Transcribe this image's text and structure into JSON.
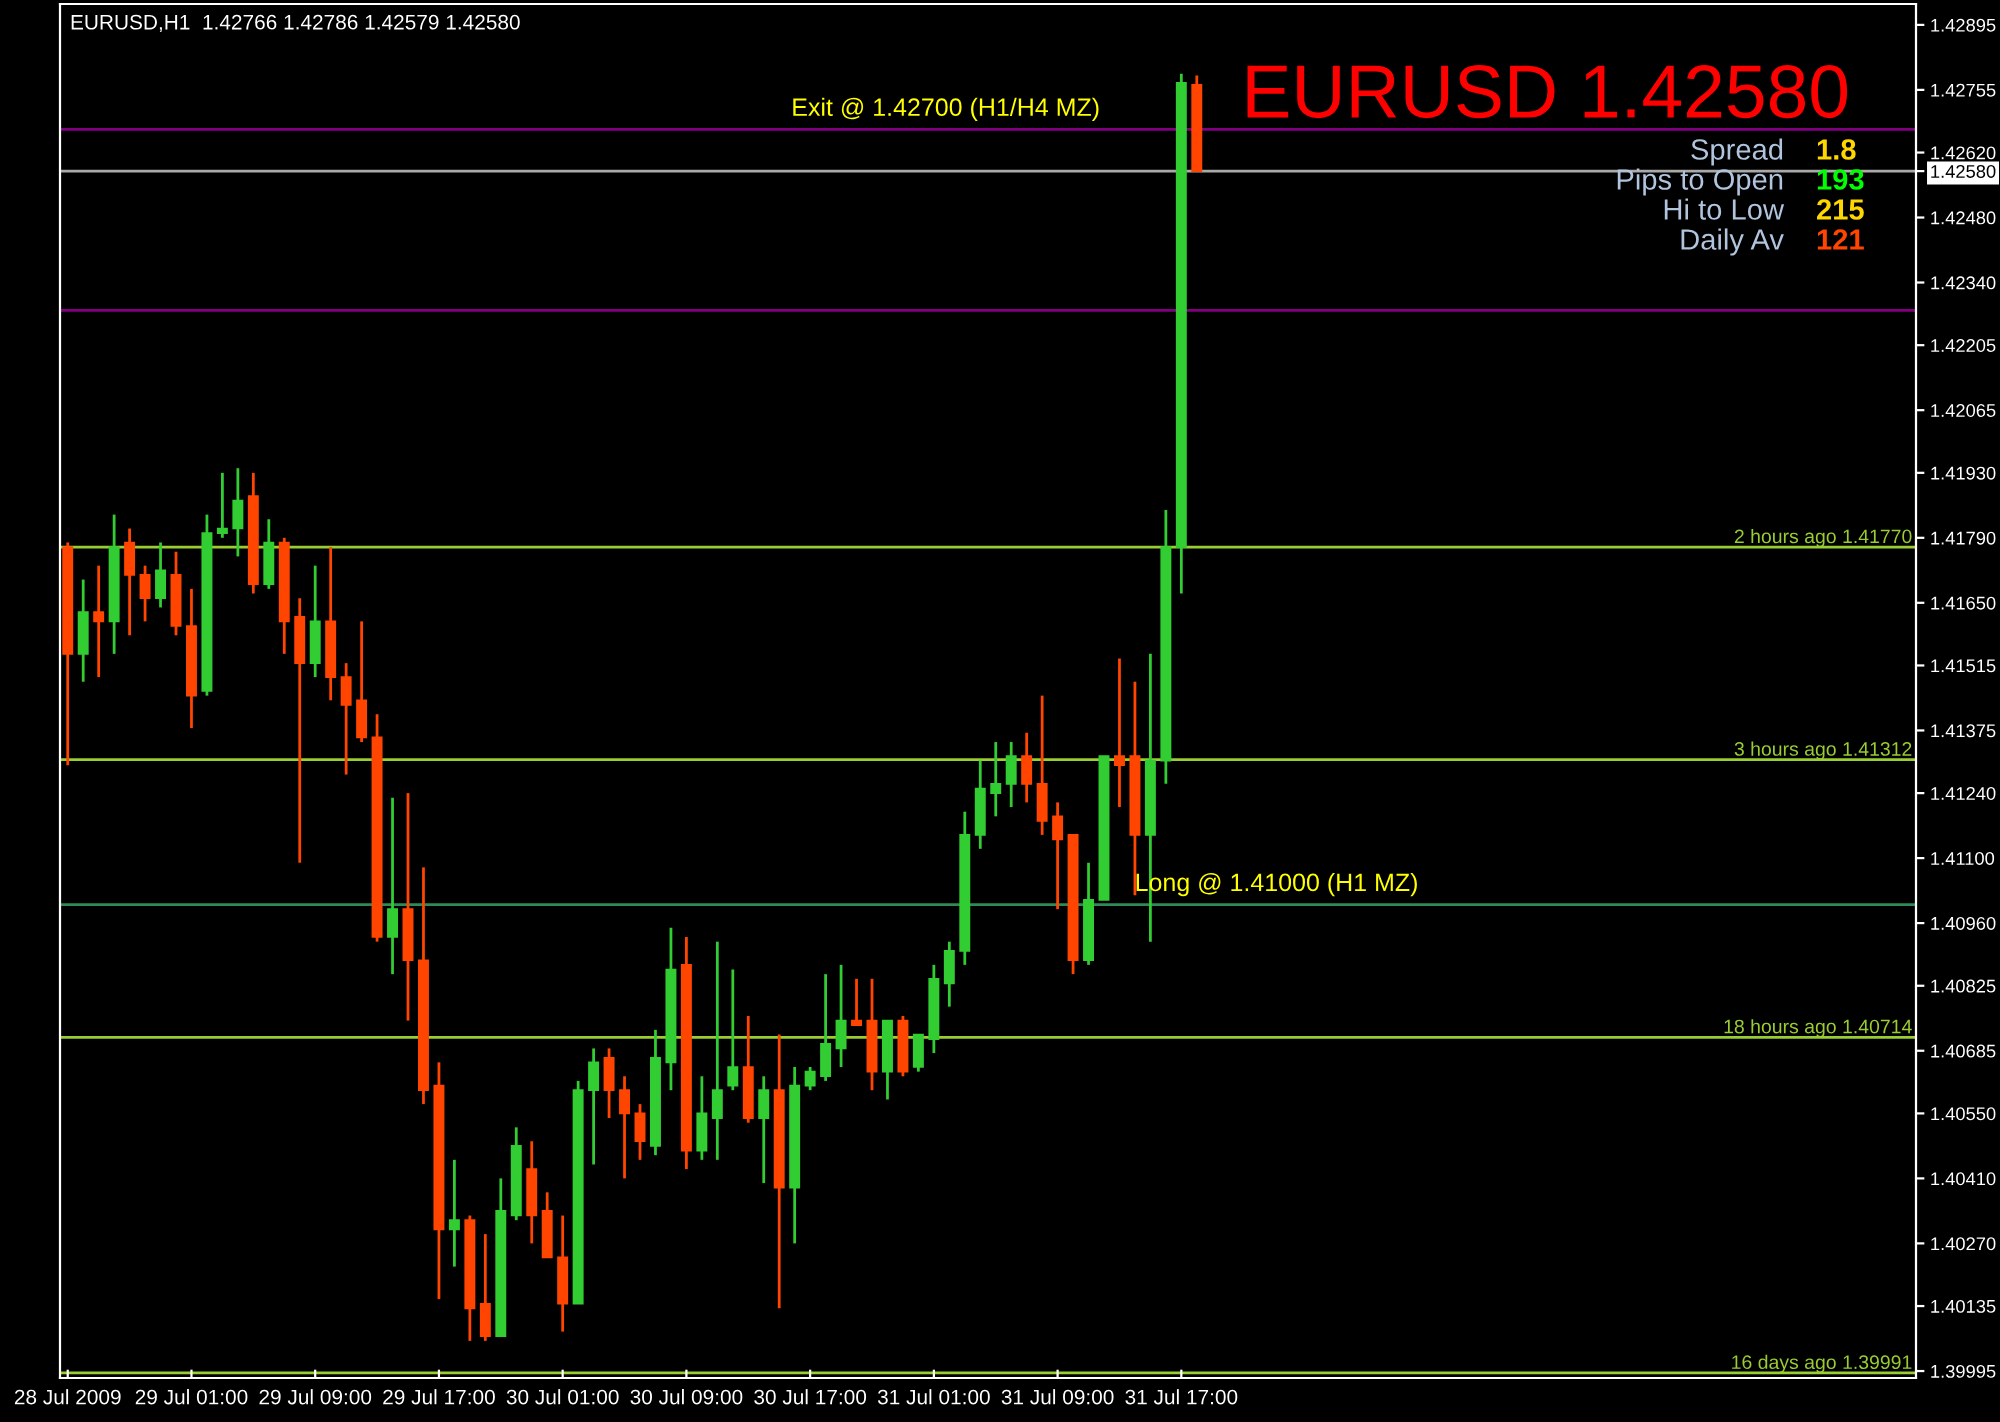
{
  "chart_data": {
    "type": "candlestick",
    "title": "EURUSD,H1  1.42766 1.42786 1.42579 1.42580",
    "annotations": [
      "EURUSD 1.42580",
      "Spread",
      "1.8",
      "Pips to Open",
      "193",
      "Hi to Low",
      "215",
      "Daily Av",
      "121",
      {
        "text": "Exit @ 1.42700 (H1/H4 MZ)",
        "y": 1.4267
      },
      {
        "text": "Long @ 1.41000 (H1 MZ)",
        "y": 1.41
      }
    ],
    "categories": [
      "28 Jul 2009",
      null,
      null,
      null,
      null,
      null,
      null,
      null,
      "29 Jul 01:00",
      null,
      null,
      null,
      null,
      null,
      null,
      null,
      "29 Jul 09:00",
      null,
      null,
      null,
      null,
      null,
      null,
      null,
      "29 Jul 17:00",
      null,
      null,
      null,
      null,
      null,
      null,
      null,
      "30 Jul 01:00",
      null,
      null,
      null,
      null,
      null,
      null,
      null,
      "30 Jul 09:00",
      null,
      null,
      null,
      null,
      null,
      null,
      null,
      "30 Jul 17:00",
      null,
      null,
      null,
      null,
      null,
      null,
      null,
      "31 Jul 01:00",
      null,
      null,
      null,
      null,
      null,
      null,
      null,
      "31 Jul 09:00",
      null,
      null,
      null,
      null,
      null,
      null,
      null,
      "31 Jul 17:00",
      null,
      null,
      null,
      null,
      null,
      null,
      null,
      null,
      null,
      null,
      null,
      null,
      null,
      null,
      null,
      null,
      null,
      null,
      null,
      null,
      null,
      null,
      null,
      null,
      null,
      null,
      null,
      null,
      null,
      null,
      null,
      null,
      null,
      null,
      null,
      null,
      null,
      null,
      null,
      null,
      null,
      null,
      null,
      null,
      null,
      null,
      null
    ],
    "ohlc": [
      [
        1.4177,
        1.4178,
        1.413,
        1.4154
      ],
      [
        1.4154,
        1.417,
        1.4148,
        1.4163
      ],
      [
        1.4163,
        1.4173,
        1.4149,
        1.4161
      ],
      [
        1.4161,
        1.4184,
        1.4154,
        1.4177
      ],
      [
        1.4178,
        1.4181,
        1.4158,
        1.4171
      ],
      [
        1.4171,
        1.4173,
        1.4161,
        1.4166
      ],
      [
        1.4166,
        1.4178,
        1.4164,
        1.4172
      ],
      [
        1.4171,
        1.4176,
        1.4158,
        1.416
      ],
      [
        1.416,
        1.4168,
        1.4138,
        1.4145
      ],
      [
        1.4146,
        1.4184,
        1.4145,
        1.418
      ],
      [
        1.418,
        1.4193,
        1.4179,
        1.4181
      ],
      [
        1.4181,
        1.4194,
        1.4175,
        1.4187
      ],
      [
        1.4188,
        1.4193,
        1.4167,
        1.4169
      ],
      [
        1.4169,
        1.4183,
        1.4168,
        1.4178
      ],
      [
        1.4178,
        1.4179,
        1.4154,
        1.4161
      ],
      [
        1.4162,
        1.4166,
        1.4109,
        1.4152
      ],
      [
        1.4152,
        1.4173,
        1.4149,
        1.4161
      ],
      [
        1.4161,
        1.4177,
        1.4144,
        1.4149
      ],
      [
        1.4149,
        1.4152,
        1.4128,
        1.4143
      ],
      [
        1.4144,
        1.4161,
        1.4135,
        1.4136
      ],
      [
        1.4136,
        1.4141,
        1.4092,
        1.4093
      ],
      [
        1.4093,
        1.4123,
        1.4085,
        1.4099
      ],
      [
        1.4099,
        1.4124,
        1.4075,
        1.4088
      ],
      [
        1.4088,
        1.4108,
        1.4057,
        1.406
      ],
      [
        1.4061,
        1.4066,
        1.4015,
        1.403
      ],
      [
        1.403,
        1.4045,
        1.4022,
        1.4032
      ],
      [
        1.4032,
        1.4033,
        1.4006,
        1.4013
      ],
      [
        1.4014,
        1.4029,
        1.4006,
        1.4007
      ],
      [
        1.4007,
        1.4041,
        1.4007,
        1.4034
      ],
      [
        1.4033,
        1.4052,
        1.4032,
        1.4048
      ],
      [
        1.4043,
        1.4049,
        1.4027,
        1.4033
      ],
      [
        1.4034,
        1.4038,
        1.4024,
        1.4024
      ],
      [
        1.4024,
        1.4033,
        1.4008,
        1.4014
      ],
      [
        1.4014,
        1.4062,
        1.4014,
        1.406
      ],
      [
        1.406,
        1.4069,
        1.4044,
        1.4066
      ],
      [
        1.4067,
        1.4069,
        1.4054,
        1.406
      ],
      [
        1.406,
        1.4063,
        1.4041,
        1.4055
      ],
      [
        1.4055,
        1.4057,
        1.4045,
        1.4049
      ],
      [
        1.4048,
        1.4073,
        1.4046,
        1.4067
      ],
      [
        1.4066,
        1.4095,
        1.406,
        1.4086
      ],
      [
        1.4087,
        1.4093,
        1.4043,
        1.4047
      ],
      [
        1.4047,
        1.4063,
        1.4045,
        1.4055
      ],
      [
        1.4054,
        1.4092,
        1.4045,
        1.406
      ],
      [
        1.4061,
        1.4086,
        1.406,
        1.4065
      ],
      [
        1.4065,
        1.4076,
        1.4053,
        1.4054
      ],
      [
        1.4054,
        1.4063,
        1.404,
        1.406
      ],
      [
        1.406,
        1.4072,
        1.4013,
        1.4039
      ],
      [
        1.4039,
        1.4065,
        1.4027,
        1.4061
      ],
      [
        1.4061,
        1.4065,
        1.406,
        1.4064
      ],
      [
        1.4063,
        1.4085,
        1.4062,
        1.407
      ],
      [
        1.4069,
        1.4087,
        1.4065,
        1.4075
      ],
      [
        1.4075,
        1.4084,
        1.4074,
        1.4074
      ],
      [
        1.4075,
        1.4084,
        1.406,
        1.4064
      ],
      [
        1.4064,
        1.4075,
        1.4058,
        1.4075
      ],
      [
        1.4075,
        1.4076,
        1.4063,
        1.4064
      ],
      [
        1.4065,
        1.4072,
        1.4064,
        1.4072
      ],
      [
        1.4071,
        1.4087,
        1.4068,
        1.4084
      ],
      [
        1.4083,
        1.4092,
        1.4078,
        1.409
      ],
      [
        1.409,
        1.412,
        1.4087,
        1.4115
      ],
      [
        1.4115,
        1.4131,
        1.4112,
        1.4125
      ],
      [
        1.4124,
        1.4135,
        1.4119,
        1.4126
      ],
      [
        1.4126,
        1.4135,
        1.4121,
        1.4132
      ],
      [
        1.4132,
        1.4137,
        1.4122,
        1.4126
      ],
      [
        1.4126,
        1.4145,
        1.4115,
        1.4118
      ],
      [
        1.4119,
        1.4122,
        1.4099,
        1.4114
      ],
      [
        1.4115,
        1.4115,
        1.4085,
        1.4088
      ],
      [
        1.4088,
        1.4109,
        1.4087,
        1.4101
      ],
      [
        1.4101,
        1.4132,
        1.4101,
        1.4132
      ],
      [
        1.4132,
        1.4153,
        1.4121,
        1.413
      ],
      [
        1.4132,
        1.4148,
        1.4102,
        1.4115
      ],
      [
        1.4115,
        1.4154,
        1.4092,
        1.4131
      ],
      [
        1.4131,
        1.4185,
        1.4126,
        1.4177
      ],
      [
        1.4177,
        1.4279,
        1.4167,
        1.4277
      ],
      [
        1.42766,
        1.42786,
        1.42579,
        1.4258
      ],
      null,
      null,
      null,
      null,
      null,
      null,
      null,
      null,
      null,
      null,
      null,
      null,
      null,
      null,
      null,
      null,
      null,
      null,
      null,
      null,
      null,
      null,
      null,
      null,
      null,
      null,
      null,
      null,
      null,
      null,
      null,
      null,
      null,
      null,
      null,
      null,
      null,
      null,
      null,
      null,
      null,
      null,
      null,
      null,
      null,
      null
    ],
    "colors": [
      "#ff4500",
      "#32cd32",
      "#ff4500",
      "#32cd32",
      "#ff4500",
      "#ff4500",
      "#32cd32",
      "#ff4500",
      "#ff4500",
      "#32cd32",
      "#32cd32",
      "#32cd32",
      "#ff4500",
      "#32cd32",
      "#ff4500",
      "#ff4500",
      "#32cd32",
      "#ff4500",
      "#ff4500",
      "#ff4500",
      "#ff4500",
      "#32cd32",
      "#ff4500",
      "#ff4500",
      "#ff4500",
      "#32cd32",
      "#ff4500",
      "#ff4500",
      "#32cd32",
      "#32cd32",
      "#ff4500",
      "#ff4500",
      "#ff4500",
      "#32cd32",
      "#32cd32",
      "#ff4500",
      "#ff4500",
      "#ff4500",
      "#32cd32",
      "#32cd32",
      "#ff4500",
      "#32cd32",
      "#32cd32",
      "#32cd32",
      "#ff4500",
      "#32cd32",
      "#ff4500",
      "#32cd32",
      "#32cd32",
      "#32cd32",
      "#32cd32",
      "#ff4500",
      "#ff4500",
      "#32cd32",
      "#ff4500",
      "#32cd32",
      "#32cd32",
      "#32cd32",
      "#32cd32",
      "#32cd32",
      "#32cd32",
      "#32cd32",
      "#ff4500",
      "#ff4500",
      "#ff4500",
      "#ff4500",
      "#32cd32",
      "#32cd32",
      "#ff4500",
      "#ff4500",
      "#32cd32",
      "#32cd32",
      "#32cd32",
      "#ff4500",
      null,
      null,
      null,
      null,
      null,
      null,
      null,
      null,
      null,
      null,
      null,
      null,
      null,
      null,
      null,
      null,
      null,
      null,
      null,
      null,
      null,
      null,
      null,
      null,
      null,
      null,
      null,
      null,
      null,
      null,
      null,
      null,
      null,
      null,
      null,
      null,
      null,
      null,
      null,
      null,
      null,
      null,
      null,
      null,
      null,
      null
    ],
    "ylim": [
      1.3998,
      1.4294
    ],
    "yticks": [
      1.42895,
      1.42755,
      {
        "value": 1.4262,
        "label": "1.42620"
      },
      {
        "value": 1.4258,
        "label": "1.42580"
      },
      {
        "value": 1.4248,
        "label": "1.42480"
      },
      {
        "value": 1.4234,
        "label": "1.42340"
      },
      1.42205,
      1.42065,
      {
        "value": 1.4193,
        "label": "1.41930"
      },
      {
        "value": 1.4179,
        "label": "1.41790"
      },
      {
        "value": 1.4165,
        "label": "1.41650"
      },
      1.41515,
      1.41375,
      {
        "value": 1.4124,
        "label": "1.41240"
      },
      {
        "value": 1.411,
        "label": "1.41100"
      },
      {
        "value": 1.4096,
        "label": "1.40960"
      },
      1.40825,
      1.40685,
      {
        "value": 1.4055,
        "label": "1.40550"
      },
      {
        "value": 1.4041,
        "label": "1.40410"
      },
      {
        "value": 1.4027,
        "label": "1.40270"
      },
      1.40135,
      1.39995
    ],
    "ref_lines": [
      {
        "axis": "y",
        "value": 1.4267,
        "color": "#800080"
      },
      {
        "axis": "y",
        "value": 1.4228,
        "color": "#800080"
      },
      {
        "axis": "y",
        "value": 1.4258,
        "color": "#a9a9a9"
      },
      {
        "axis": "y",
        "value": 1.4177,
        "color": "#9acd32",
        "label": "2 hours ago 1.41770"
      },
      {
        "axis": "y",
        "value": 1.41312,
        "color": "#9acd32",
        "label": "3 hours ago 1.41312"
      },
      {
        "axis": "y",
        "value": 1.40714,
        "color": "#9acd32",
        "label": "18 hours ago 1.40714"
      },
      {
        "axis": "y",
        "value": 1.39991,
        "color": "#9acd32",
        "label": "16 days ago 1.39991"
      },
      {
        "axis": "y",
        "value": 1.41,
        "color": "#2e8b57"
      }
    ]
  }
}
